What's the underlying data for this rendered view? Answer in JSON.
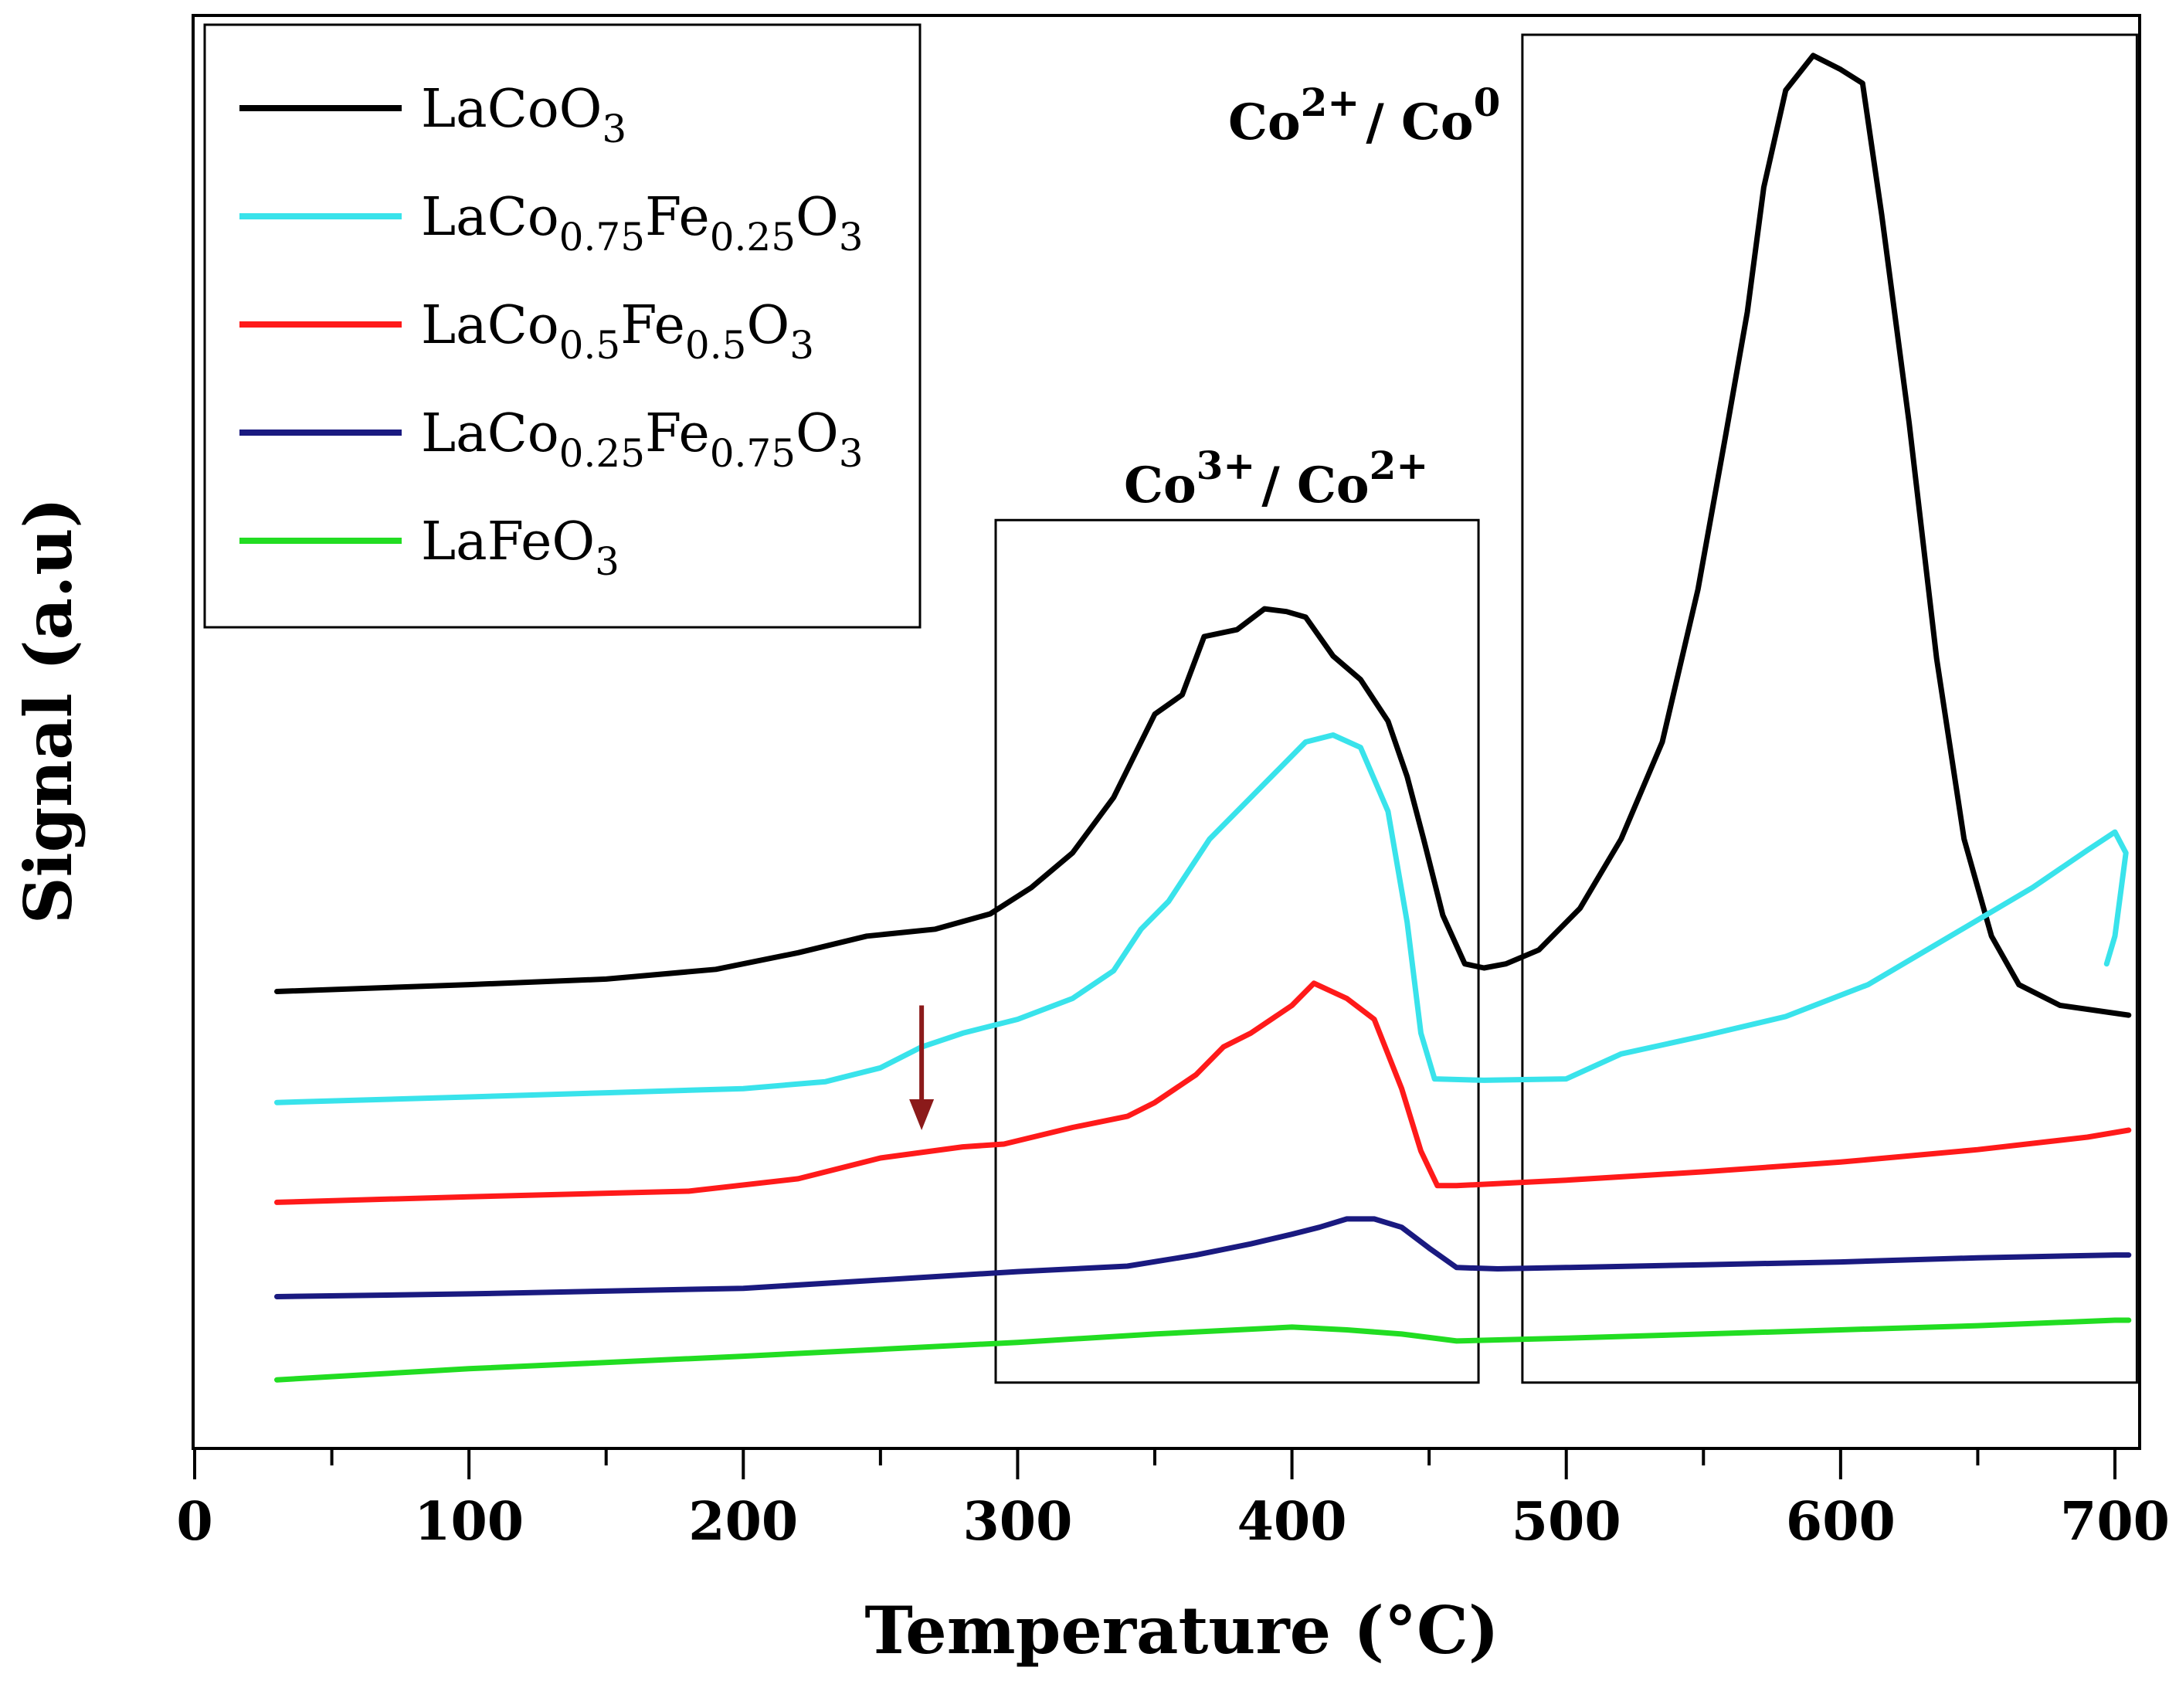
{
  "chart_data": {
    "type": "line",
    "title": "",
    "xlabel": "Temperature (°C)",
    "ylabel": "Signal (a.u)",
    "xlim": [
      0,
      710
    ],
    "ylim": [
      0,
      1
    ],
    "x_ticks": [
      "0",
      "100",
      "200",
      "300",
      "400",
      "500",
      "600",
      "700"
    ],
    "y_ticks": [],
    "legend_position": "top-left",
    "series": [
      {
        "name": "LaCoO3",
        "label_main": "LaCoO",
        "label_sub1": "3",
        "color": "#000000",
        "points": [
          [
            30,
            0.31
          ],
          [
            100,
            0.315
          ],
          [
            150,
            0.319
          ],
          [
            190,
            0.326
          ],
          [
            220,
            0.338
          ],
          [
            245,
            0.35
          ],
          [
            270,
            0.355
          ],
          [
            290,
            0.366
          ],
          [
            305,
            0.385
          ],
          [
            320,
            0.41
          ],
          [
            335,
            0.45
          ],
          [
            345,
            0.49
          ],
          [
            350,
            0.51
          ],
          [
            360,
            0.524
          ],
          [
            368,
            0.566
          ],
          [
            380,
            0.571
          ],
          [
            390,
            0.586
          ],
          [
            398,
            0.584
          ],
          [
            405,
            0.58
          ],
          [
            415,
            0.552
          ],
          [
            425,
            0.535
          ],
          [
            435,
            0.505
          ],
          [
            442,
            0.465
          ],
          [
            448,
            0.42
          ],
          [
            455,
            0.365
          ],
          [
            463,
            0.33
          ],
          [
            470,
            0.327
          ],
          [
            478,
            0.33
          ],
          [
            490,
            0.34
          ],
          [
            505,
            0.37
          ],
          [
            520,
            0.42
          ],
          [
            535,
            0.49
          ],
          [
            548,
            0.6
          ],
          [
            558,
            0.71
          ],
          [
            566,
            0.8
          ],
          [
            572,
            0.89
          ],
          [
            580,
            0.96
          ],
          [
            590,
            0.985
          ],
          [
            600,
            0.975
          ],
          [
            608,
            0.965
          ],
          [
            615,
            0.87
          ],
          [
            625,
            0.72
          ],
          [
            635,
            0.55
          ],
          [
            645,
            0.42
          ],
          [
            655,
            0.35
          ],
          [
            665,
            0.315
          ],
          [
            680,
            0.3
          ],
          [
            705,
            0.293
          ]
        ]
      },
      {
        "name": "LaCo0.75Fe0.25O3",
        "label_main": "LaCo",
        "label_sub1": "0.75",
        "label_mid": "Fe",
        "label_sub2": "0.25",
        "label_end": "O",
        "label_sub3": "3",
        "color": "#39e3eb",
        "points": [
          [
            30,
            0.23
          ],
          [
            100,
            0.234
          ],
          [
            150,
            0.237
          ],
          [
            200,
            0.24
          ],
          [
            230,
            0.245
          ],
          [
            250,
            0.255
          ],
          [
            265,
            0.27
          ],
          [
            280,
            0.28
          ],
          [
            300,
            0.29
          ],
          [
            320,
            0.305
          ],
          [
            335,
            0.325
          ],
          [
            345,
            0.355
          ],
          [
            355,
            0.375
          ],
          [
            370,
            0.42
          ],
          [
            385,
            0.45
          ],
          [
            395,
            0.47
          ],
          [
            405,
            0.49
          ],
          [
            415,
            0.495
          ],
          [
            425,
            0.486
          ],
          [
            435,
            0.44
          ],
          [
            442,
            0.36
          ],
          [
            447,
            0.28
          ],
          [
            452,
            0.247
          ],
          [
            470,
            0.246
          ],
          [
            500,
            0.247
          ],
          [
            520,
            0.265
          ],
          [
            550,
            0.278
          ],
          [
            580,
            0.292
          ],
          [
            610,
            0.315
          ],
          [
            640,
            0.35
          ],
          [
            670,
            0.385
          ],
          [
            690,
            0.412
          ],
          [
            700,
            0.425
          ],
          [
            704,
            0.41
          ],
          [
            700,
            0.35
          ],
          [
            697,
            0.33
          ]
        ]
      },
      {
        "name": "LaCo0.5Fe0.5O3",
        "label_main": "LaCo",
        "label_sub1": "0.5",
        "label_mid": "Fe",
        "label_sub2": "0.5",
        "label_end": "O",
        "label_sub3": "3",
        "color": "#ff1a1a",
        "points": [
          [
            30,
            0.158
          ],
          [
            100,
            0.162
          ],
          [
            180,
            0.166
          ],
          [
            220,
            0.175
          ],
          [
            250,
            0.19
          ],
          [
            280,
            0.198
          ],
          [
            295,
            0.2
          ],
          [
            320,
            0.212
          ],
          [
            340,
            0.22
          ],
          [
            350,
            0.23
          ],
          [
            365,
            0.25
          ],
          [
            375,
            0.27
          ],
          [
            385,
            0.28
          ],
          [
            400,
            0.3
          ],
          [
            408,
            0.316
          ],
          [
            420,
            0.305
          ],
          [
            430,
            0.29
          ],
          [
            440,
            0.24
          ],
          [
            447,
            0.195
          ],
          [
            453,
            0.17
          ],
          [
            460,
            0.17
          ],
          [
            500,
            0.174
          ],
          [
            550,
            0.18
          ],
          [
            600,
            0.187
          ],
          [
            650,
            0.196
          ],
          [
            690,
            0.205
          ],
          [
            705,
            0.21
          ]
        ]
      },
      {
        "name": "LaCo0.25Fe0.75O3",
        "label_main": "LaCo",
        "label_sub1": "0.25",
        "label_mid": "Fe",
        "label_sub2": "0.75",
        "label_end": "O",
        "label_sub3": "3",
        "color": "#1a1a80",
        "points": [
          [
            30,
            0.09
          ],
          [
            100,
            0.092
          ],
          [
            200,
            0.096
          ],
          [
            250,
            0.102
          ],
          [
            300,
            0.108
          ],
          [
            340,
            0.112
          ],
          [
            365,
            0.12
          ],
          [
            385,
            0.128
          ],
          [
            400,
            0.135
          ],
          [
            410,
            0.14
          ],
          [
            420,
            0.146
          ],
          [
            430,
            0.146
          ],
          [
            440,
            0.14
          ],
          [
            450,
            0.125
          ],
          [
            460,
            0.111
          ],
          [
            475,
            0.11
          ],
          [
            500,
            0.111
          ],
          [
            550,
            0.113
          ],
          [
            600,
            0.115
          ],
          [
            650,
            0.118
          ],
          [
            700,
            0.12
          ],
          [
            705,
            0.12
          ]
        ]
      },
      {
        "name": "LaFeO3",
        "label_main": "LaFeO",
        "label_sub1": "3",
        "color": "#22dd22",
        "points": [
          [
            30,
            0.03
          ],
          [
            100,
            0.038
          ],
          [
            200,
            0.047
          ],
          [
            250,
            0.052
          ],
          [
            300,
            0.057
          ],
          [
            350,
            0.063
          ],
          [
            380,
            0.066
          ],
          [
            400,
            0.068
          ],
          [
            420,
            0.066
          ],
          [
            440,
            0.063
          ],
          [
            460,
            0.058
          ],
          [
            500,
            0.06
          ],
          [
            550,
            0.063
          ],
          [
            600,
            0.066
          ],
          [
            650,
            0.069
          ],
          [
            700,
            0.073
          ],
          [
            705,
            0.073
          ]
        ]
      }
    ],
    "annotations": [
      {
        "name": "co3-co2",
        "text_a": "Co",
        "sup_a": "3+",
        "text_b": "/ Co",
        "sup_b": "2+",
        "box_x": [
          292,
          468
        ],
        "box_y": [
          0.028,
          0.65
        ]
      },
      {
        "name": "co2-co0",
        "text_a": "Co",
        "sup_a": "2+",
        "text_b": "/ Co",
        "sup_b": "0",
        "box_x": [
          484,
          708
        ],
        "box_y": [
          0.028,
          1.0
        ]
      }
    ],
    "arrow": {
      "x": 265,
      "y_from": 0.3,
      "y_to": 0.21,
      "color": "#8b1a1a"
    }
  }
}
